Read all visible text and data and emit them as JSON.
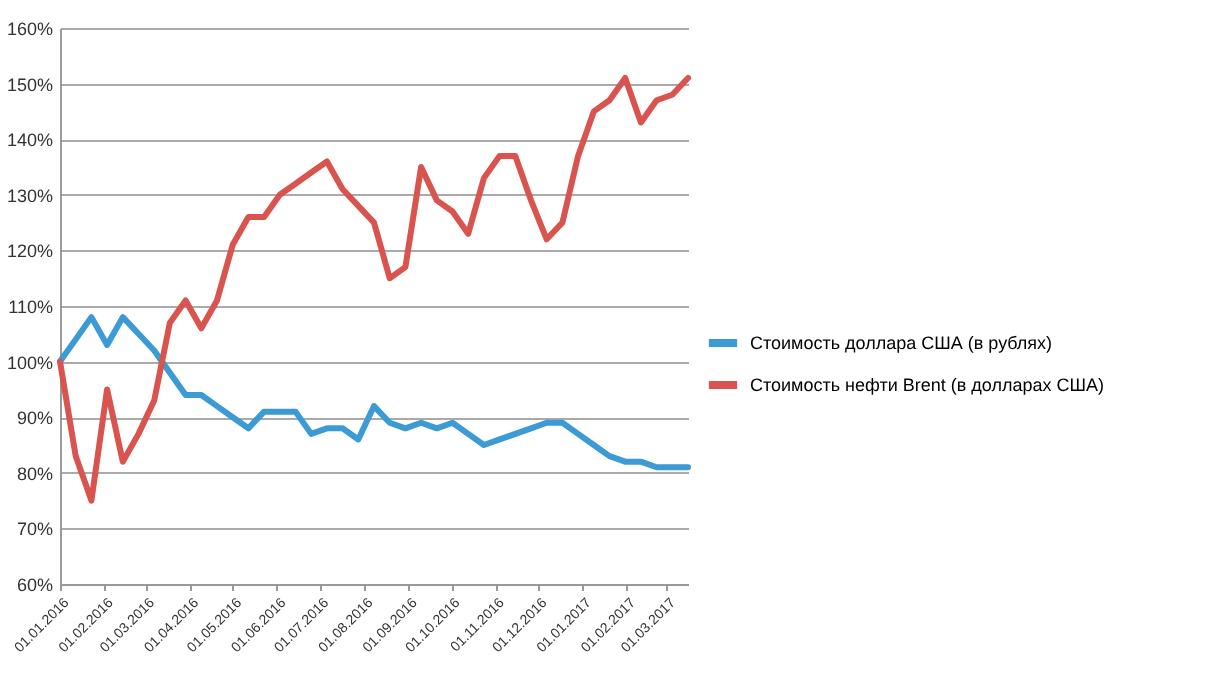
{
  "chart_data": {
    "type": "line",
    "x": [
      "2016-01-01",
      "2016-01-12",
      "2016-01-23",
      "2016-02-03",
      "2016-02-14",
      "2016-02-25",
      "2016-03-07",
      "2016-03-18",
      "2016-03-29",
      "2016-04-09",
      "2016-04-20",
      "2016-05-01",
      "2016-05-12",
      "2016-05-23",
      "2016-06-03",
      "2016-06-14",
      "2016-06-25",
      "2016-07-06",
      "2016-07-17",
      "2016-07-28",
      "2016-08-08",
      "2016-08-19",
      "2016-08-30",
      "2016-09-10",
      "2016-09-21",
      "2016-10-02",
      "2016-10-13",
      "2016-10-24",
      "2016-11-04",
      "2016-11-15",
      "2016-11-26",
      "2016-12-07",
      "2016-12-18",
      "2016-12-29",
      "2017-01-09",
      "2017-01-20",
      "2017-01-31",
      "2017-02-11",
      "2017-02-22",
      "2017-03-05",
      "2017-03-16"
    ],
    "series": [
      {
        "name": "Стоимость доллара США (в рублях)",
        "color": "#3c9ad4",
        "values": [
          100,
          104,
          108,
          103,
          108,
          105,
          102,
          98,
          94,
          94,
          92,
          90,
          88,
          91,
          91,
          91,
          87,
          88,
          88,
          86,
          92,
          89,
          88,
          89,
          88,
          89,
          87,
          85,
          86,
          87,
          88,
          89,
          89,
          87,
          85,
          83,
          82,
          82,
          81,
          81,
          81
        ]
      },
      {
        "name": "Стоимость нефти Brent (в долларах США)",
        "color": "#d9534f",
        "values": [
          100,
          83,
          75,
          95,
          82,
          87,
          93,
          107,
          111,
          106,
          111,
          121,
          126,
          126,
          130,
          132,
          134,
          136,
          131,
          128,
          125,
          115,
          117,
          135,
          129,
          127,
          123,
          133,
          137,
          137,
          129,
          122,
          125,
          137,
          145,
          147,
          151,
          143,
          147,
          148,
          151
        ]
      }
    ],
    "xlim": [
      "2016-01-01",
      "2017-03-16"
    ],
    "xticks": [
      {
        "value": "2016-01-01",
        "label": "01.01.2016"
      },
      {
        "value": "2016-02-01",
        "label": "01.02.2016"
      },
      {
        "value": "2016-03-01",
        "label": "01.03.2016"
      },
      {
        "value": "2016-04-01",
        "label": "01.04.2016"
      },
      {
        "value": "2016-05-01",
        "label": "01.05.2016"
      },
      {
        "value": "2016-06-01",
        "label": "01.06.2016"
      },
      {
        "value": "2016-07-01",
        "label": "01.07.2016"
      },
      {
        "value": "2016-08-01",
        "label": "01.08.2016"
      },
      {
        "value": "2016-09-01",
        "label": "01.09.2016"
      },
      {
        "value": "2016-10-01",
        "label": "01.10.2016"
      },
      {
        "value": "2016-11-01",
        "label": "01.11.2016"
      },
      {
        "value": "2016-12-01",
        "label": "01.12.2016"
      },
      {
        "value": "2017-01-01",
        "label": "01.01.2017"
      },
      {
        "value": "2017-02-01",
        "label": "01.02.2017"
      },
      {
        "value": "2017-03-01",
        "label": "01.03.2017"
      }
    ],
    "ylim": [
      60,
      160
    ],
    "yticks": [
      {
        "value": 60,
        "label": "60%"
      },
      {
        "value": 70,
        "label": "70%"
      },
      {
        "value": 80,
        "label": "80%"
      },
      {
        "value": 90,
        "label": "90%"
      },
      {
        "value": 100,
        "label": "100%"
      },
      {
        "value": 110,
        "label": "110%"
      },
      {
        "value": 120,
        "label": "120%"
      },
      {
        "value": 130,
        "label": "130%"
      },
      {
        "value": 140,
        "label": "140%"
      },
      {
        "value": 150,
        "label": "150%"
      },
      {
        "value": 160,
        "label": "160%"
      }
    ],
    "grid": "y",
    "legend": "right",
    "marker": "none",
    "line_style": "solid"
  }
}
